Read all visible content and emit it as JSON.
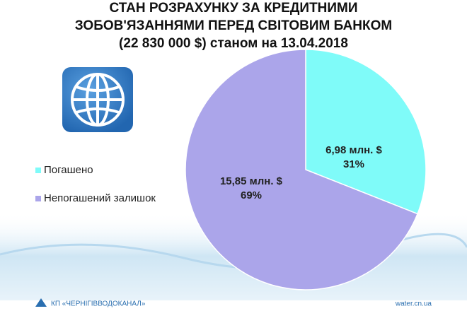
{
  "chart_data": {
    "type": "pie",
    "title": [
      "СТАН РОЗРАХУНКУ ЗА КРЕДИТНИМИ",
      "ЗОБОВ'ЯЗАННЯМИ ПЕРЕД СВІТОВИМ БАНКОМ",
      "(22 830 000 $) станом на 13.04.2018"
    ],
    "categories": [
      "Погашено",
      "Непогашений залишок"
    ],
    "values": [
      31,
      69
    ],
    "value_labels": [
      "31%",
      "69%"
    ],
    "amounts": [
      6.98,
      15.85
    ],
    "amount_labels": [
      "6,98 млн. $",
      "15,85 млн. $"
    ],
    "colors": [
      "#7ffbf9",
      "#aba5ea"
    ],
    "legend": "left"
  },
  "footer": {
    "organization": "КП «ЧЕРНІГІВВОДОКАНАЛ»",
    "website": "water.cn.ua"
  }
}
